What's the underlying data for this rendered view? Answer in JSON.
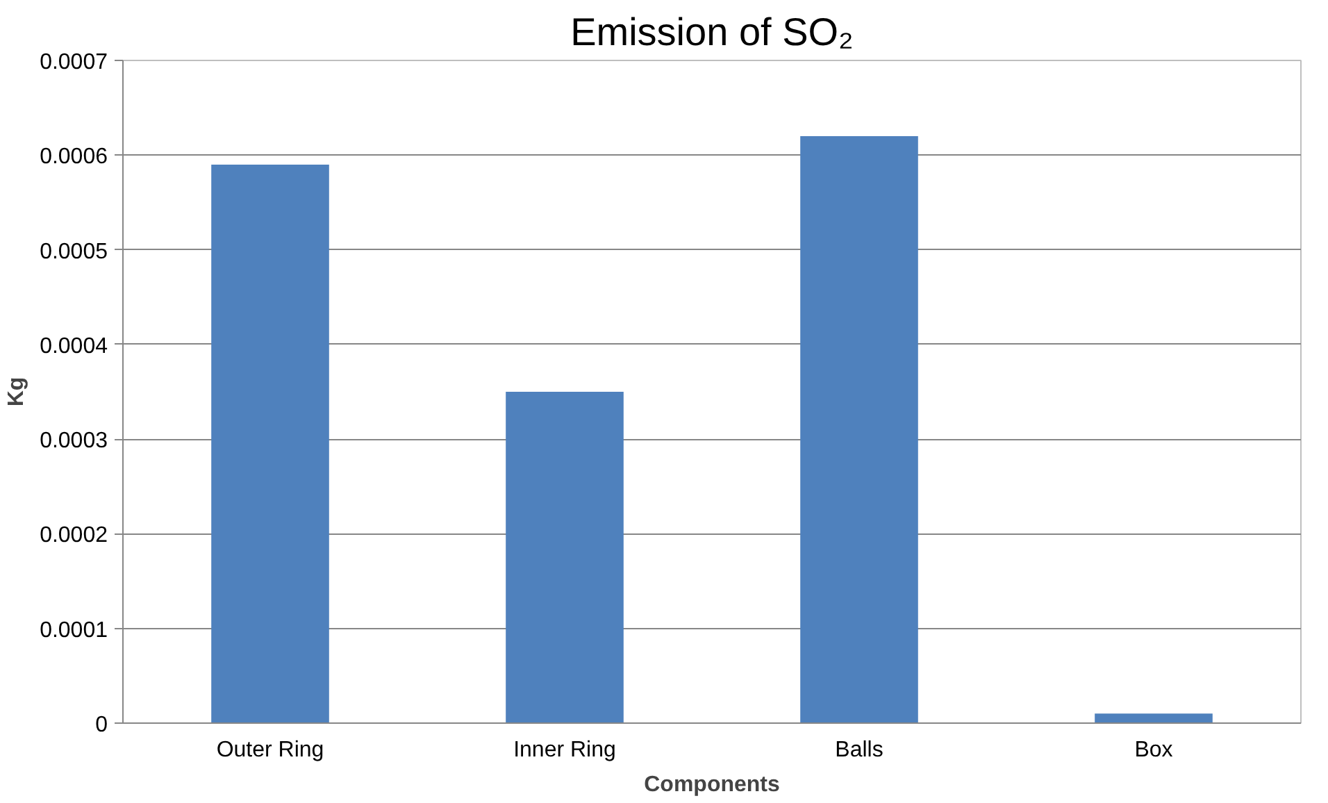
{
  "chart_data": {
    "type": "bar",
    "title": "Emission of SO₂",
    "xlabel": "Components",
    "ylabel": "Kg",
    "categories": [
      "Outer Ring",
      "Inner Ring",
      "Balls",
      "Box"
    ],
    "values": [
      0.00059,
      0.00035,
      0.00062,
      1e-05
    ],
    "color": "#4f81bd",
    "ylim": [
      0,
      0.0007
    ],
    "yticks": [
      0,
      0.0001,
      0.0002,
      0.0003,
      0.0004,
      0.0005,
      0.0006,
      0.0007
    ],
    "grid": "y"
  }
}
